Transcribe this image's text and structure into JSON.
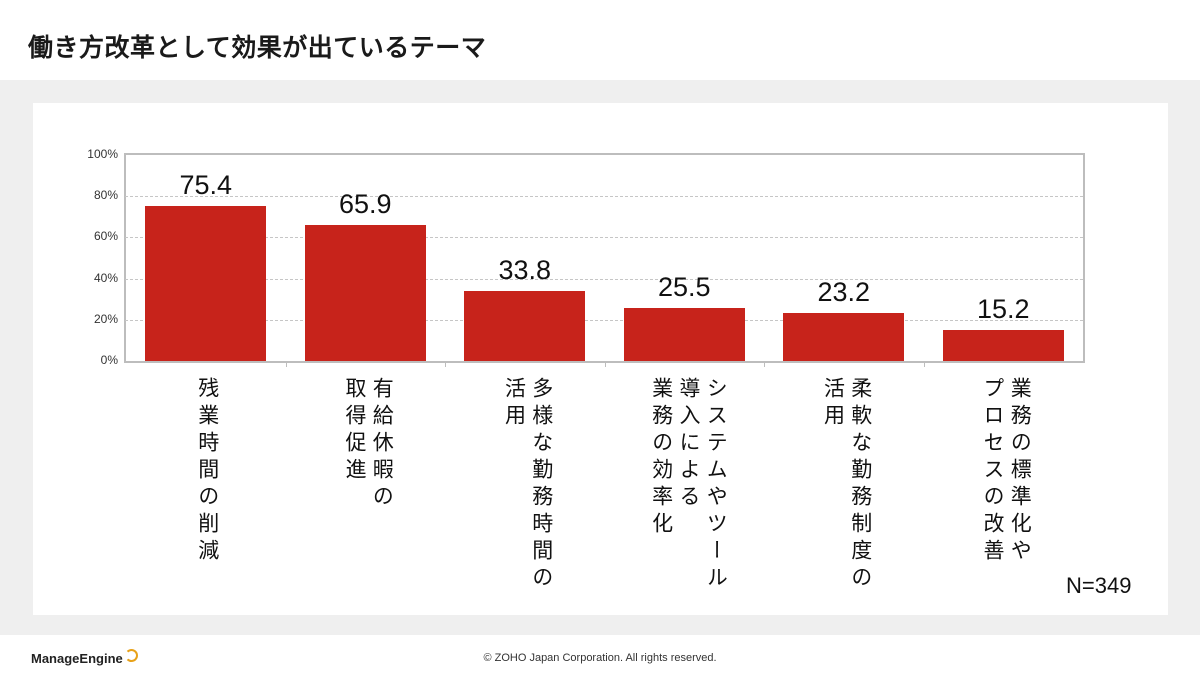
{
  "slide": {
    "title": "働き方改革として効果が出ているテーマ",
    "sample_size": "N=349",
    "footer_logo": "ManageEngine",
    "copyright": "© ZOHO Japan Corporation. All rights reserved."
  },
  "colors": {
    "bar": "#c7231b",
    "band": "#efefef"
  },
  "chart_data": {
    "type": "bar",
    "categories": [
      "残業時間の削減",
      "有給休暇の取得促進",
      "多様な勤務時間の活用",
      "システムやツール導入による業務の効率化",
      "柔軟な勤務制度の活用",
      "業務の標準化やプロセスの改善"
    ],
    "category_lines": [
      [
        "残業時間の削減"
      ],
      [
        "有給休暇の",
        "取得促進"
      ],
      [
        "多様な勤務時間の",
        "活用"
      ],
      [
        "システムやツール",
        "導入による",
        "業務の効率化"
      ],
      [
        "柔軟な勤務制度の",
        "活用"
      ],
      [
        "業務の標準化や",
        "プロセスの改善"
      ]
    ],
    "values": [
      75.4,
      65.9,
      33.8,
      25.5,
      23.2,
      15.2
    ],
    "value_labels": [
      "75.4",
      "65.9",
      "33.8",
      "25.5",
      "23.2",
      "15.2"
    ],
    "yticks": [
      "0%",
      "20%",
      "40%",
      "60%",
      "80%",
      "100%"
    ],
    "ylim": [
      0,
      100
    ],
    "grid": true,
    "legend": "none"
  }
}
